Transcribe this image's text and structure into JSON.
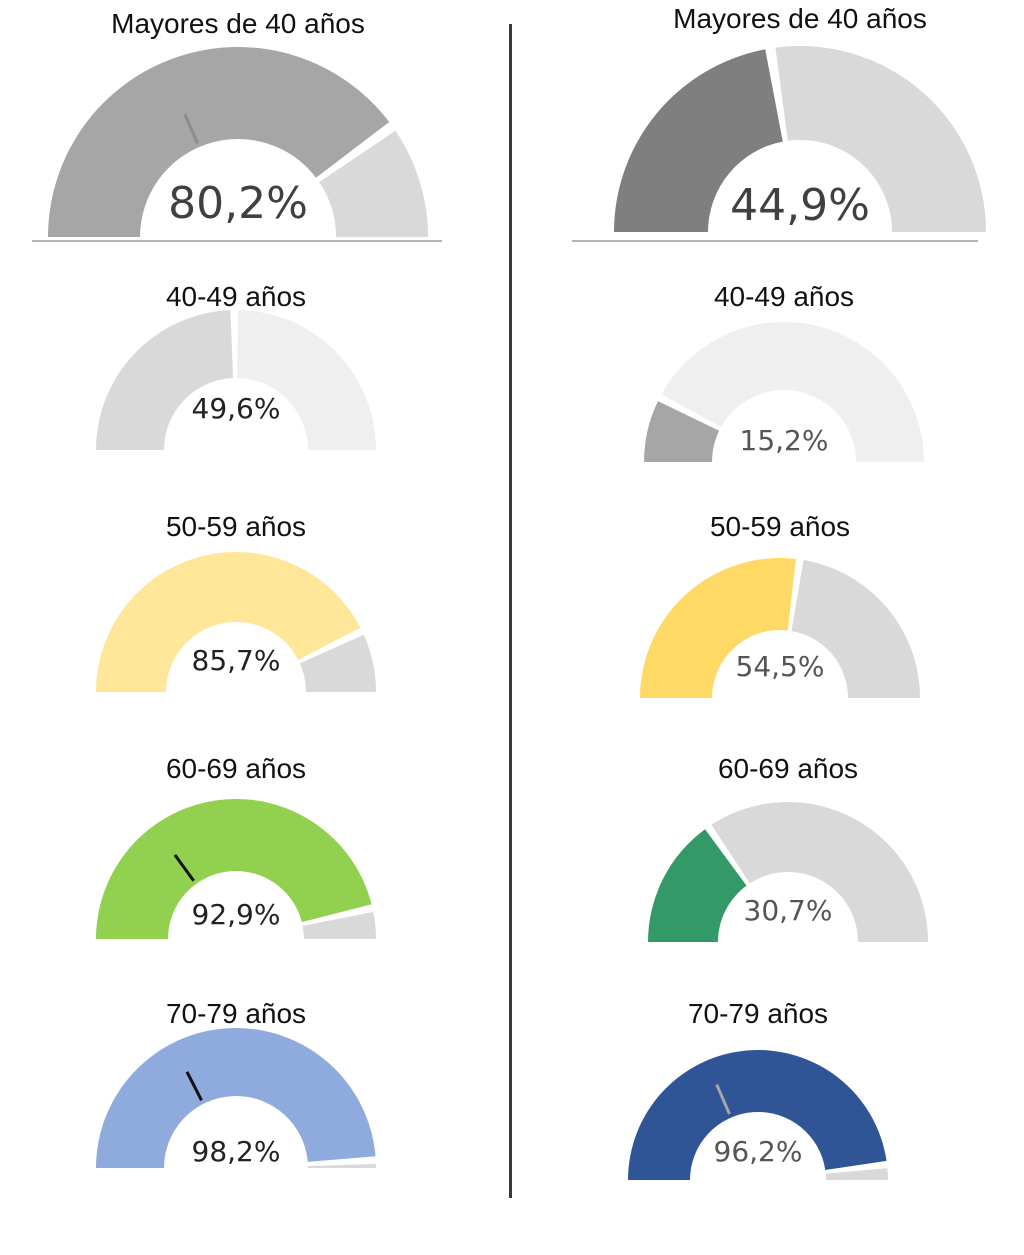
{
  "chart_data": [
    {
      "type": "gauge",
      "title": "Mayores de 40 años",
      "value": 80.2,
      "label": "80,2%",
      "max": 100,
      "fill_color": "#a6a6a6",
      "rest_color": "#d9d9d9",
      "needle_value": 37,
      "needle_color": "#8c8c8c",
      "label_color": "#404040"
    },
    {
      "type": "gauge",
      "title": "40-49 años",
      "value": 49.6,
      "label": "49,6%",
      "max": 100,
      "fill_color": "#d9d9d9",
      "rest_color": "#efefef",
      "label_color": "#222222"
    },
    {
      "type": "gauge",
      "title": "50-59 años",
      "value": 85.7,
      "label": "85,7%",
      "max": 100,
      "fill_color": "#ffe699",
      "rest_color": "#d9d9d9",
      "label_color": "#222222"
    },
    {
      "type": "gauge",
      "title": "60-69 años",
      "value": 92.9,
      "label": "92,9%",
      "max": 100,
      "fill_color": "#92d050",
      "rest_color": "#d9d9d9",
      "needle_value": 30,
      "needle_color": "#111111",
      "label_color": "#222222"
    },
    {
      "type": "gauge",
      "title": "70-79 años",
      "value": 98.2,
      "label": "98,2%",
      "max": 100,
      "fill_color": "#8faadc",
      "rest_color": "#d9d9d9",
      "needle_value": 35,
      "needle_color": "#111111",
      "label_color": "#222222"
    },
    {
      "type": "gauge",
      "title": "Mayores de 40 años",
      "value": 44.9,
      "label": "44,9%",
      "max": 100,
      "fill_color": "#7f7f7f",
      "rest_color": "#d9d9d9",
      "label_color": "#404040"
    },
    {
      "type": "gauge",
      "title": "40-49 años",
      "value": 15.2,
      "label": "15,2%",
      "max": 100,
      "fill_color": "#a6a6a6",
      "rest_color": "#efefef",
      "label_color": "#555555"
    },
    {
      "type": "gauge",
      "title": "50-59 años",
      "value": 54.5,
      "label": "54,5%",
      "max": 100,
      "fill_color": "#ffd966",
      "rest_color": "#d9d9d9",
      "label_color": "#555555"
    },
    {
      "type": "gauge",
      "title": "60-69 años",
      "value": 30.7,
      "label": "30,7%",
      "max": 100,
      "fill_color": "#339966",
      "rest_color": "#d9d9d9",
      "label_color": "#555555"
    },
    {
      "type": "gauge",
      "title": "70-79 años",
      "value": 96.2,
      "label": "96,2%",
      "max": 100,
      "fill_color": "#2f5597",
      "rest_color": "#d9d9d9",
      "needle_value": 37,
      "needle_color": "#a6a6a6",
      "label_color": "#555555"
    }
  ]
}
